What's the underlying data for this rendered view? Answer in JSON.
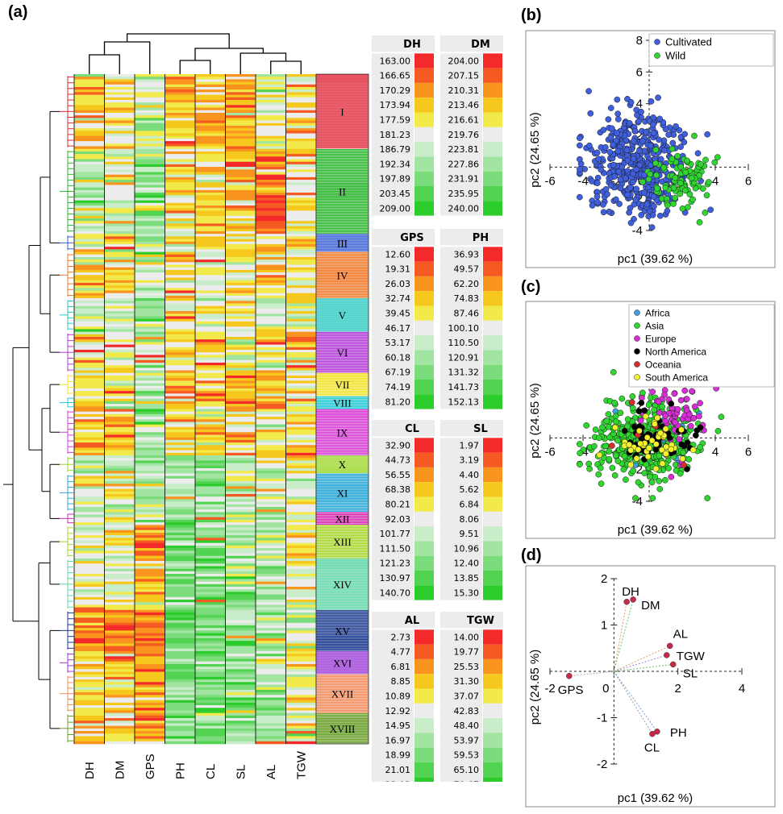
{
  "panel_labels": [
    "(a)",
    "(b)",
    "(c)",
    "(d)"
  ],
  "chart_data": [
    {
      "type": "heatmap",
      "panel": "(a)",
      "columns": [
        "DH",
        "DM",
        "GPS",
        "PH",
        "CL",
        "SL",
        "AL",
        "TGW"
      ],
      "clusters": [
        "I",
        "II",
        "III",
        "IV",
        "V",
        "VI",
        "VII",
        "VIII",
        "IX",
        "X",
        "XI",
        "XII",
        "XIII",
        "XIV",
        "XV",
        "XVI",
        "XVII",
        "XVIII"
      ],
      "cluster_colors": [
        "#e02a3a",
        "#2bb52e",
        "#3b5fd6",
        "#f07a2a",
        "#2ac8c0",
        "#b23bd6",
        "#f2e32a",
        "#2acbd6",
        "#d83ad6",
        "#9bd62a",
        "#2aa8d6",
        "#d62ab0",
        "#a8d62a",
        "#5fd6a8",
        "#1a3a8f",
        "#9a3ad6",
        "#f08a5a",
        "#6aa02a"
      ],
      "cluster_sizes": [
        16,
        18,
        4,
        10,
        7,
        9,
        5,
        3,
        10,
        4,
        8,
        3,
        7,
        11,
        9,
        5,
        8,
        6
      ],
      "color_scale": [
        "#f42a2a",
        "#f55a22",
        "#f9951f",
        "#f6c81e",
        "#f2e94a",
        "#ececec",
        "#c9ecc9",
        "#a2e4a2",
        "#7bdc7b",
        "#52d452",
        "#2dcc2d"
      ],
      "legend": [
        {
          "name": "DH",
          "values": [
            "163.00",
            "166.65",
            "170.29",
            "173.94",
            "177.59",
            "181.23",
            "186.79",
            "192.34",
            "197.89",
            "203.45",
            "209.00"
          ]
        },
        {
          "name": "DM",
          "values": [
            "204.00",
            "207.15",
            "210.31",
            "213.46",
            "216.61",
            "219.76",
            "223.81",
            "227.86",
            "231.91",
            "235.95",
            "240.00"
          ]
        },
        {
          "name": "GPS",
          "values": [
            "12.60",
            "19.31",
            "26.03",
            "32.74",
            "39.45",
            "46.17",
            "53.17",
            "60.18",
            "67.19",
            "74.19",
            "81.20"
          ]
        },
        {
          "name": "PH",
          "values": [
            "36.93",
            "49.57",
            "62.20",
            "74.83",
            "87.46",
            "100.10",
            "110.50",
            "120.91",
            "131.32",
            "141.73",
            "152.13"
          ]
        },
        {
          "name": "CL",
          "values": [
            "32.90",
            "44.73",
            "56.55",
            "68.38",
            "80.21",
            "92.03",
            "101.77",
            "111.50",
            "121.23",
            "130.97",
            "140.70"
          ]
        },
        {
          "name": "SL",
          "values": [
            "1.97",
            "3.19",
            "4.40",
            "5.62",
            "6.84",
            "8.06",
            "9.51",
            "10.96",
            "12.40",
            "13.85",
            "15.30"
          ]
        },
        {
          "name": "AL",
          "values": [
            "2.73",
            "4.77",
            "6.81",
            "8.85",
            "10.89",
            "12.92",
            "14.95",
            "16.97",
            "18.99",
            "21.01",
            "23.03"
          ]
        },
        {
          "name": "TGW",
          "values": [
            "14.00",
            "19.77",
            "25.53",
            "31.30",
            "37.07",
            "42.83",
            "48.40",
            "53.97",
            "59.53",
            "65.10",
            "70.67"
          ]
        }
      ]
    },
    {
      "type": "scatter",
      "panel": "(b)",
      "xlabel": "pc1 (39.62 %)",
      "ylabel": "pc2 (24.65 %)",
      "xlim": [
        -6,
        6
      ],
      "ylim": [
        -4,
        8
      ],
      "xticks": [
        "-6",
        "-4",
        "-2",
        "0",
        "2",
        "4",
        "6"
      ],
      "yticks": [
        "-4",
        "-2",
        "0",
        "2",
        "4",
        "6",
        "8"
      ],
      "series": [
        {
          "name": "Cultivated",
          "color": "#3f5fdc",
          "n": 480,
          "center": [
            -0.6,
            0.2
          ],
          "spread": [
            1.5,
            1.6
          ]
        },
        {
          "name": "Wild",
          "color": "#2fd62f",
          "n": 110,
          "center": [
            2.0,
            -0.8
          ],
          "spread": [
            0.9,
            1.0
          ]
        }
      ]
    },
    {
      "type": "scatter",
      "panel": "(c)",
      "xlabel": "pc1 (39.62 %)",
      "ylabel": "pc2 (24.65 %)",
      "xlim": [
        -6,
        6
      ],
      "ylim": [
        -4,
        8
      ],
      "xticks": [
        "-6",
        "-4",
        "-2",
        "0",
        "2",
        "4",
        "6"
      ],
      "yticks": [
        "-4",
        "-2",
        "0",
        "2",
        "4",
        "6",
        "8"
      ],
      "series": [
        {
          "name": "Africa",
          "color": "#3fa0e0",
          "n": 20,
          "center": [
            0.5,
            0.3
          ],
          "spread": [
            1.3,
            1.2
          ]
        },
        {
          "name": "Asia",
          "color": "#2fd62f",
          "n": 430,
          "center": [
            -0.3,
            -0.2
          ],
          "spread": [
            1.6,
            1.2
          ]
        },
        {
          "name": "Europe",
          "color": "#d62fd6",
          "n": 70,
          "center": [
            1.5,
            1.4
          ],
          "spread": [
            1.0,
            1.4
          ]
        },
        {
          "name": "North America",
          "color": "#000000",
          "n": 60,
          "center": [
            0.4,
            0.0
          ],
          "spread": [
            1.2,
            0.9
          ]
        },
        {
          "name": "Oceania",
          "color": "#d62f2f",
          "n": 6,
          "center": [
            0.0,
            0.8
          ],
          "spread": [
            1.3,
            1.2
          ]
        },
        {
          "name": "South America",
          "color": "#f2f22f",
          "n": 45,
          "center": [
            0.1,
            -0.4
          ],
          "spread": [
            1.0,
            0.8
          ]
        }
      ]
    },
    {
      "type": "scatter",
      "panel": "(d)",
      "xlabel": "pc1 (39.62 %)",
      "ylabel": "pc2 (24.65 %)",
      "xlim": [
        -2,
        4
      ],
      "ylim": [
        -2,
        2
      ],
      "xticks": [
        "-2",
        "0",
        "2",
        "4"
      ],
      "yticks": [
        "-2",
        "-1",
        "0",
        "1",
        "2"
      ],
      "point_color": "#c8284a",
      "loadings": [
        {
          "name": "DH",
          "x": 0.4,
          "y": 1.5
        },
        {
          "name": "DM",
          "x": 0.6,
          "y": 1.55
        },
        {
          "name": "AL",
          "x": 1.75,
          "y": 0.55
        },
        {
          "name": "TGW",
          "x": 1.65,
          "y": 0.35
        },
        {
          "name": "SL",
          "x": 1.85,
          "y": 0.15
        },
        {
          "name": "GPS",
          "x": -1.4,
          "y": -0.1
        },
        {
          "name": "PH",
          "x": 1.35,
          "y": -1.3
        },
        {
          "name": "CL",
          "x": 1.2,
          "y": -1.35
        }
      ]
    }
  ]
}
